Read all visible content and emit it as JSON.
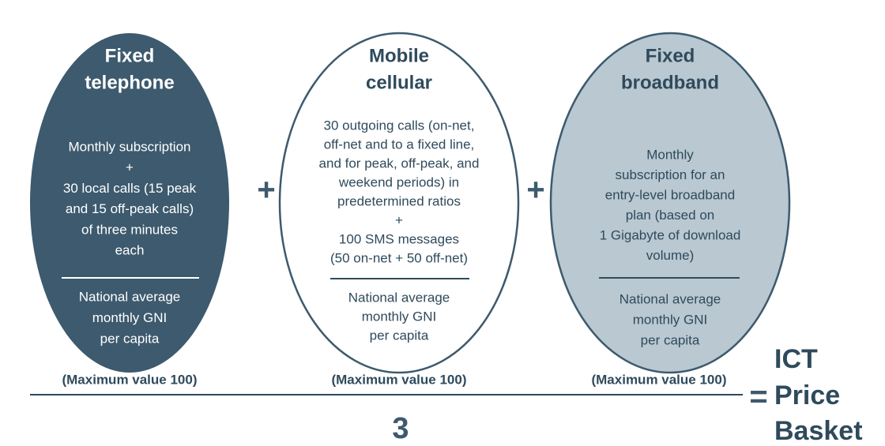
{
  "components": [
    {
      "title": [
        "Fixed",
        "telephone"
      ],
      "description": [
        "Monthly subscription",
        "+",
        "30 local calls (15 peak",
        "and 15 off-peak calls)",
        "of three minutes",
        "each"
      ],
      "denominator": [
        "National average",
        "monthly GNI",
        "per capita"
      ],
      "max_label": "(Maximum value 100)"
    },
    {
      "title": [
        "Mobile",
        "cellular"
      ],
      "description": [
        "30 outgoing calls (on-net,",
        "off-net and to a fixed line,",
        "and for peak, off-peak, and",
        "weekend periods) in",
        "predetermined ratios",
        "+",
        "100 SMS messages",
        "(50 on-net + 50 off-net)"
      ],
      "denominator": [
        "National average",
        "monthly GNI",
        "per capita"
      ],
      "max_label": "(Maximum value 100)"
    },
    {
      "title": [
        "Fixed",
        "broadband"
      ],
      "description": [
        "Monthly",
        "subscription for an",
        "entry-level broadband",
        "plan (based on",
        "1 Gigabyte of download",
        "volume)"
      ],
      "denominator": [
        "National average",
        "monthly GNI",
        "per capita"
      ],
      "max_label": "(Maximum value 100)"
    }
  ],
  "operators": [
    "+",
    "+"
  ],
  "equals": "=",
  "divisor": "3",
  "result": [
    "ICT",
    "Price",
    "Basket"
  ]
}
